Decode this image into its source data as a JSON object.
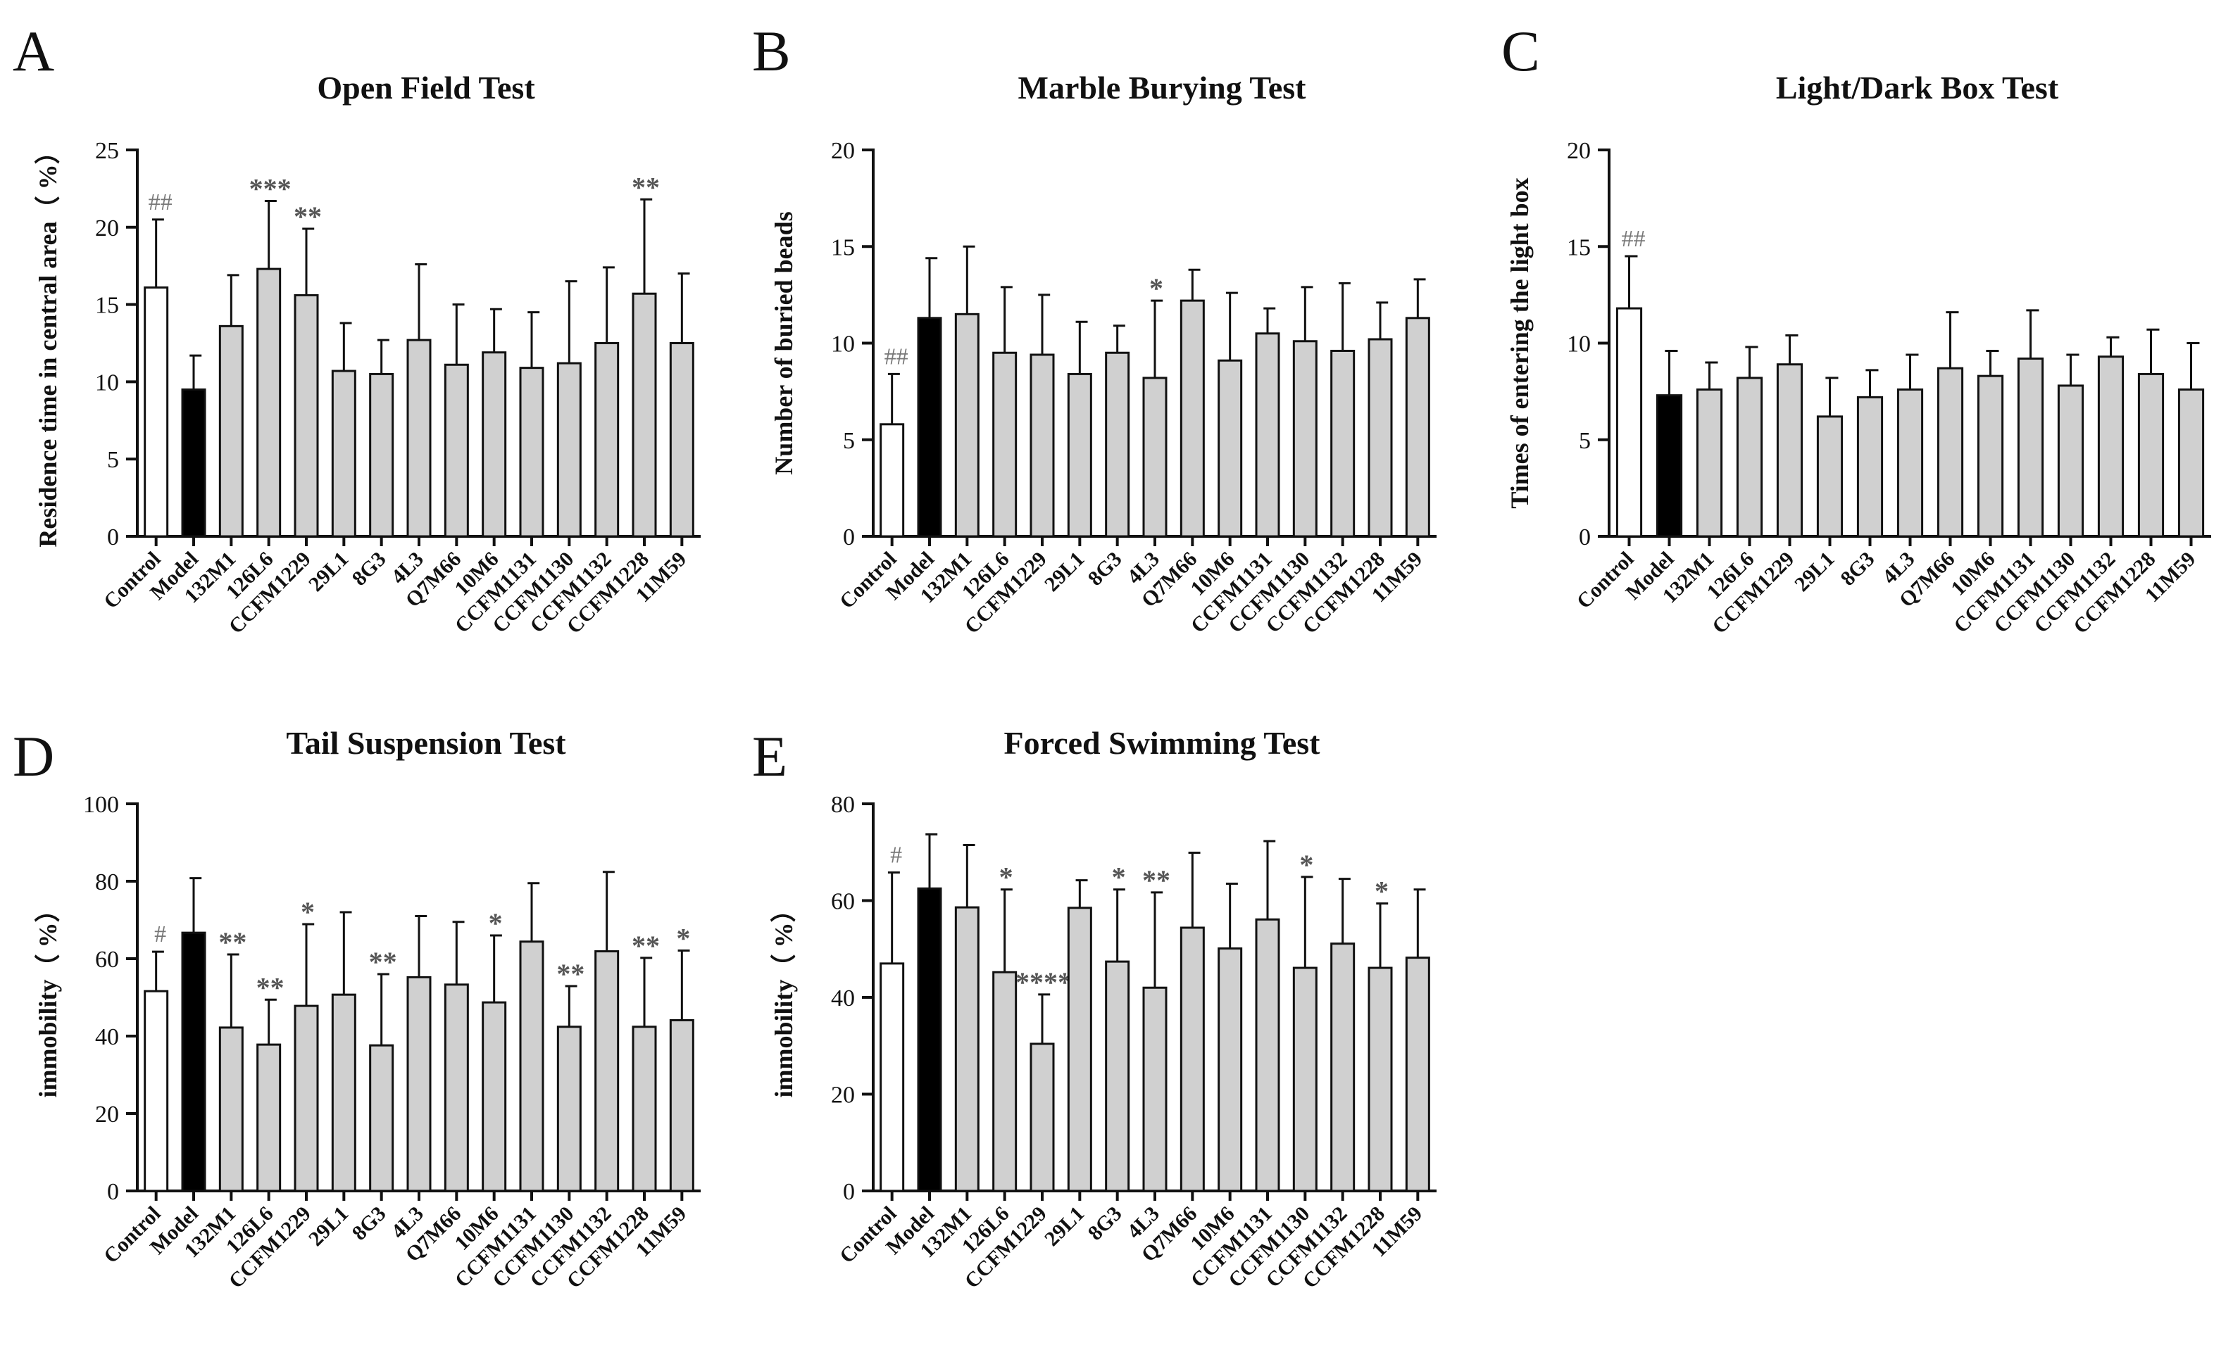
{
  "categories": [
    "Control",
    "Model",
    "132M1",
    "126L6",
    "CCFM1229",
    "29L1",
    "8G3",
    "4L3",
    "Q7M66",
    "10M6",
    "CCFM1131",
    "CCFM1130",
    "CCFM1132",
    "CCFM1228",
    "11M59"
  ],
  "colors": {
    "control": "#ffffff",
    "model": "#000000",
    "treatment": "#d0d0d0",
    "stroke": "#111111",
    "hash": "#777777",
    "star": "#555555"
  },
  "chart_data": [
    {
      "panel": "A",
      "type": "bar",
      "title": "Open Field Test",
      "ylabel": "Residence time in central area（ %）",
      "ylim": [
        0,
        25
      ],
      "yticks": [
        0,
        5,
        10,
        15,
        20,
        25
      ],
      "values": [
        16.1,
        9.5,
        13.6,
        17.3,
        15.6,
        10.7,
        10.5,
        12.7,
        11.1,
        11.9,
        10.9,
        11.2,
        12.5,
        15.7,
        12.5
      ],
      "errors": [
        4.4,
        2.2,
        3.3,
        4.4,
        4.3,
        3.1,
        2.2,
        4.9,
        3.9,
        2.8,
        3.6,
        5.3,
        4.9,
        6.1,
        4.5
      ],
      "annotations": [
        "##",
        "",
        "",
        "***",
        "**",
        "",
        "",
        "",
        "",
        "",
        "",
        "",
        "",
        "**",
        ""
      ]
    },
    {
      "panel": "B",
      "type": "bar",
      "title": "Marble Burying Test",
      "ylabel": "Number of buried beads",
      "ylim": [
        0,
        20
      ],
      "yticks": [
        0,
        5,
        10,
        15,
        20
      ],
      "values": [
        5.8,
        11.3,
        11.5,
        9.5,
        9.4,
        8.4,
        9.5,
        8.2,
        12.2,
        9.1,
        10.5,
        10.1,
        9.6,
        10.2,
        11.3
      ],
      "errors": [
        2.6,
        3.1,
        3.5,
        3.4,
        3.1,
        2.7,
        1.4,
        4.0,
        1.6,
        3.5,
        1.3,
        2.8,
        3.5,
        1.9,
        2.0
      ],
      "annotations": [
        "##",
        "",
        "",
        "",
        "",
        "",
        "",
        "*",
        "",
        "",
        "",
        "",
        "",
        "",
        ""
      ]
    },
    {
      "panel": "C",
      "type": "bar",
      "title": "Light/Dark Box Test",
      "ylabel": "Times of entering the light box",
      "ylim": [
        0,
        20
      ],
      "yticks": [
        0,
        5,
        10,
        15,
        20
      ],
      "values": [
        11.8,
        7.3,
        7.6,
        8.2,
        8.9,
        6.2,
        7.2,
        7.6,
        8.7,
        8.3,
        9.2,
        7.8,
        9.3,
        8.4,
        7.6
      ],
      "errors": [
        2.7,
        2.3,
        1.4,
        1.6,
        1.5,
        2.0,
        1.4,
        1.8,
        2.9,
        1.3,
        2.5,
        1.6,
        1.0,
        2.3,
        2.4
      ],
      "annotations": [
        "##",
        "",
        "",
        "",
        "",
        "",
        "",
        "",
        "",
        "",
        "",
        "",
        "",
        "",
        ""
      ]
    },
    {
      "panel": "D",
      "type": "bar",
      "title": "Tail Suspension Test",
      "ylabel": "immobility（ %）",
      "ylim": [
        0,
        100
      ],
      "yticks": [
        0,
        20,
        40,
        60,
        80,
        100
      ],
      "values": [
        51.6,
        66.7,
        42.2,
        37.8,
        47.8,
        50.7,
        37.6,
        55.2,
        53.3,
        48.7,
        64.4,
        42.4,
        61.9,
        42.4,
        44.1
      ],
      "errors": [
        10.2,
        14.1,
        18.9,
        11.6,
        21.1,
        21.3,
        18.4,
        15.8,
        16.2,
        17.3,
        15.1,
        10.5,
        20.5,
        17.8,
        18.0
      ],
      "annotations": [
        "#",
        "",
        "**",
        "**",
        "*",
        "",
        "**",
        "",
        "",
        "*",
        "",
        "**",
        "",
        "**",
        "*"
      ]
    },
    {
      "panel": "E",
      "type": "bar",
      "title": "Forced Swimming Test",
      "ylabel": "immobility（ %）",
      "ylim": [
        0,
        80
      ],
      "yticks": [
        0,
        20,
        40,
        60,
        80
      ],
      "values": [
        47.0,
        62.5,
        58.6,
        45.2,
        30.4,
        58.5,
        47.4,
        42.0,
        54.4,
        50.1,
        56.1,
        46.1,
        51.1,
        46.1,
        48.2
      ],
      "errors": [
        18.8,
        11.2,
        12.9,
        17.1,
        10.2,
        5.7,
        14.9,
        19.7,
        15.5,
        13.4,
        16.2,
        18.8,
        13.4,
        13.3,
        14.1
      ],
      "annotations": [
        "#",
        "",
        "",
        "*",
        "****",
        "",
        "*",
        "**",
        "",
        "",
        "",
        "*",
        "",
        "*",
        ""
      ]
    }
  ]
}
